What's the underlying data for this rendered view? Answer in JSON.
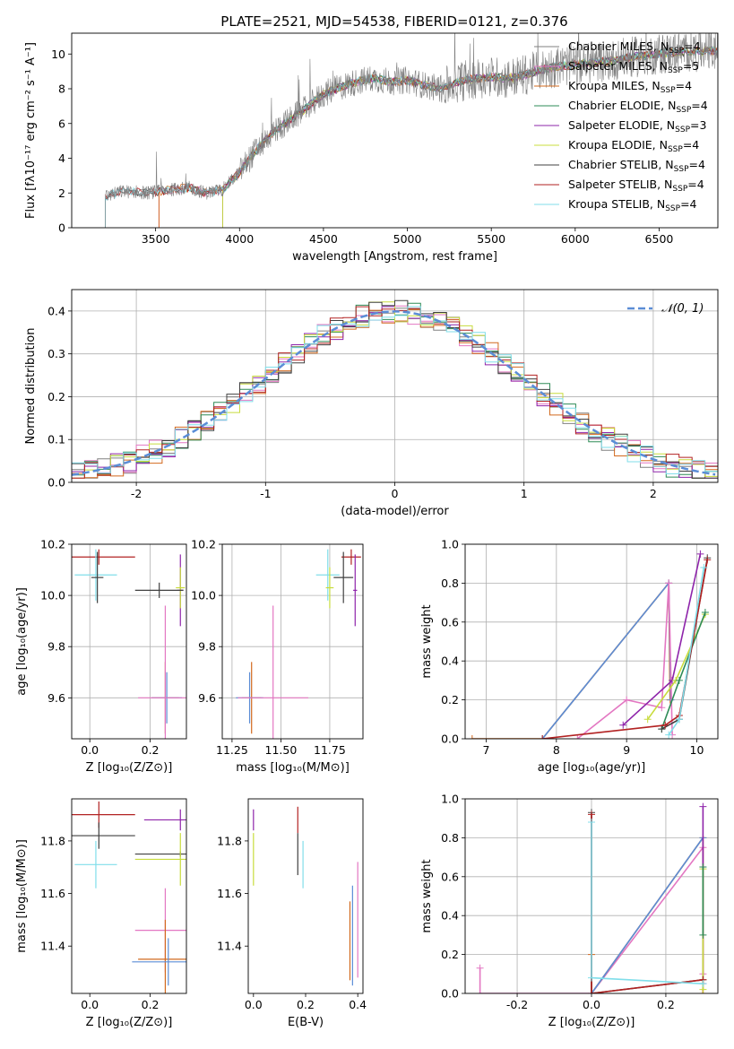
{
  "chart_data": [
    {
      "type": "line",
      "title": "PLATE=2521, MJD=54538, FIBERID=0121, z=0.376",
      "xlabel": "wavelength [Angstrom, rest frame]",
      "ylabel": "Flux [fλ10⁻¹⁷ erg cm⁻² s⁻¹ A⁻¹]",
      "xlim": [
        3000,
        6850
      ],
      "ylim": [
        0,
        11.2
      ],
      "xticks": [
        3500,
        4000,
        4500,
        5000,
        5500,
        6000,
        6500
      ],
      "yticks": [
        0,
        2,
        4,
        6,
        8,
        10
      ],
      "legend_position": "top-right",
      "data_color": "#808080",
      "approx_continuum": {
        "x": [
          3200,
          3300,
          3450,
          3600,
          3700,
          3800,
          3900,
          4000,
          4100,
          4200,
          4300,
          4400,
          4500,
          4600,
          4700,
          4800,
          4900,
          5000,
          5100,
          5200,
          5300,
          5400,
          5500,
          5600,
          5700,
          5800,
          5900,
          6000,
          6200,
          6400,
          6600,
          6800
        ],
        "y": [
          1.8,
          2.1,
          2.0,
          2.2,
          2.3,
          2.0,
          2.2,
          3.2,
          4.5,
          5.5,
          6.2,
          6.9,
          7.7,
          8.1,
          8.4,
          8.6,
          8.4,
          8.5,
          8.2,
          8.0,
          8.4,
          8.6,
          8.7,
          8.6,
          8.8,
          9.1,
          9.3,
          9.4,
          9.6,
          9.9,
          10.1,
          10.2
        ]
      },
      "series": [
        {
          "name": "Chabrier MILES, Nₛₛₚ=4",
          "label_main": "Chabrier MILES, N",
          "label_sub": "SSP",
          "label_end": "=4",
          "color": "#808080",
          "start": 3200
        },
        {
          "name": "Salpeter MILES, Nₛₛₚ=5",
          "label_main": "Salpeter MILES, N",
          "label_sub": "SSP",
          "label_end": "=5",
          "color": "#e377c2",
          "start": 3520
        },
        {
          "name": "Kroupa MILES, Nₛₛₚ=4",
          "label_main": "Kroupa MILES, N",
          "label_sub": "SSP",
          "label_end": "=4",
          "color": "#d2691e",
          "start": 3520
        },
        {
          "name": "Chabrier ELODIE, Nₛₛₚ=4",
          "label_main": "Chabrier ELODIE, N",
          "label_sub": "SSP",
          "label_end": "=4",
          "color": "#2e8b57",
          "start": 3900
        },
        {
          "name": "Salpeter ELODIE, Nₛₛₚ=3",
          "label_main": "Salpeter ELODIE, N",
          "label_sub": "SSP",
          "label_end": "=3",
          "color": "#8e24aa",
          "start": 3900
        },
        {
          "name": "Kroupa ELODIE, Nₛₛₚ=4",
          "label_main": "Kroupa ELODIE, N",
          "label_sub": "SSP",
          "label_end": "=4",
          "color": "#c8dc3c",
          "start": 3900
        },
        {
          "name": "Chabrier STELIB, Nₛₛₚ=4",
          "label_main": "Chabrier STELIB, N",
          "label_sub": "SSP",
          "label_end": "=4",
          "color": "#404040",
          "start": 3200
        },
        {
          "name": "Salpeter STELIB, Nₛₛₚ=4",
          "label_main": "Salpeter STELIB, N",
          "label_sub": "SSP",
          "label_end": "=4",
          "color": "#b22222",
          "start": 3200
        },
        {
          "name": "Kroupa STELIB, Nₛₛₚ=4",
          "label_main": "Kroupa STELIB, N",
          "label_sub": "SSP",
          "label_end": "=4",
          "color": "#80deea",
          "start": 3200
        }
      ]
    },
    {
      "type": "line",
      "xlabel": "(data-model)/error",
      "ylabel": "Normed distribution",
      "xlim": [
        -2.5,
        2.5
      ],
      "ylim": [
        0,
        0.45
      ],
      "xticks": [
        -2,
        -1,
        0,
        1,
        2
      ],
      "yticks": [
        0.0,
        0.1,
        0.2,
        0.3,
        0.4
      ],
      "grid": true,
      "legend_position": "top-right",
      "normal_curve": {
        "label": "𝒩(0, 1)",
        "color": "#5b8dd6",
        "style": "dashed"
      },
      "histogram_note": "step histograms of residuals, one per model, bin width 0.1, scattered around N(0,1)"
    },
    {
      "type": "scatter",
      "xlabel": "Z [log₁₀(Z/Z⊙)]",
      "ylabel": "age  [log₁₀(age/yr)]",
      "xlim": [
        -0.06,
        0.32
      ],
      "ylim": [
        9.44,
        10.2
      ],
      "xticks": [
        0.0,
        0.2
      ],
      "yticks": [
        9.6,
        9.8,
        10.0,
        10.2
      ],
      "grid": true,
      "points": [
        {
          "c": "#b22222",
          "x": 0.03,
          "xerr": 0.12,
          "y": 10.15,
          "yerr": 0.03
        },
        {
          "c": "#80deea",
          "x": 0.02,
          "xerr": 0.07,
          "y": 10.08,
          "yerr": 0.1
        },
        {
          "c": "#404040",
          "x": 0.025,
          "xerr": 0.02,
          "y": 10.07,
          "yerr": 0.1
        },
        {
          "c": "#8e24aa",
          "x": 0.3,
          "xerr": 0.01,
          "y": 10.02,
          "yerr": 0.14
        },
        {
          "c": "#c8dc3c",
          "x": 0.3,
          "xerr": 0.015,
          "y": 10.03,
          "yerr": 0.08
        },
        {
          "c": "#404040",
          "x": 0.23,
          "xerr": 0.08,
          "y": 10.02,
          "yerr": 0.03
        },
        {
          "c": "#d2691e",
          "x": 0.25,
          "xerr": 0.045,
          "y": 9.6,
          "yerr": 0.14
        },
        {
          "c": "#5b8dd6",
          "x": 0.255,
          "xerr": 0.05,
          "y": 9.6,
          "yerr": 0.1
        },
        {
          "c": "#e377c2",
          "x": 0.25,
          "xerr": 0.09,
          "y": 9.6,
          "yerr": 0.36
        }
      ]
    },
    {
      "type": "scatter",
      "xlabel": "mass [log₁₀(M/M⊙)]",
      "ylabel": "",
      "xlim": [
        11.2,
        11.92
      ],
      "ylim": [
        9.44,
        10.2
      ],
      "xticks": [
        11.25,
        11.5,
        11.75
      ],
      "yticks": [
        9.6,
        9.8,
        10.0,
        10.2
      ],
      "grid": true,
      "points": [
        {
          "c": "#b22222",
          "x": 11.86,
          "xerr": 0.05,
          "y": 10.15,
          "yerr": 0.03
        },
        {
          "c": "#80deea",
          "x": 11.74,
          "xerr": 0.06,
          "y": 10.08,
          "yerr": 0.1
        },
        {
          "c": "#404040",
          "x": 11.82,
          "xerr": 0.05,
          "y": 10.07,
          "yerr": 0.1
        },
        {
          "c": "#8e24aa",
          "x": 11.88,
          "xerr": 0.01,
          "y": 10.02,
          "yerr": 0.14
        },
        {
          "c": "#c8dc3c",
          "x": 11.75,
          "xerr": 0.02,
          "y": 10.03,
          "yerr": 0.08
        },
        {
          "c": "#d2691e",
          "x": 11.35,
          "xerr": 0.05,
          "y": 9.6,
          "yerr": 0.14
        },
        {
          "c": "#5b8dd6",
          "x": 11.34,
          "xerr": 0.07,
          "y": 9.6,
          "yerr": 0.1
        },
        {
          "c": "#e377c2",
          "x": 11.46,
          "xerr": 0.18,
          "y": 9.6,
          "yerr": 0.36
        }
      ]
    },
    {
      "type": "line",
      "xlabel": "age  [log₁₀(age/yr)]",
      "ylabel": "mass weight",
      "xlim": [
        6.7,
        10.3
      ],
      "ylim": [
        0,
        1.0
      ],
      "xticks": [
        7,
        8,
        9,
        10
      ],
      "yticks": [
        0.0,
        0.2,
        0.4,
        0.6,
        0.8,
        1.0
      ],
      "grid": true,
      "series": [
        {
          "c": "#d2691e",
          "x": [
            6.8,
            7.8,
            9.6,
            9.62
          ],
          "y": [
            0,
            0,
            0.8,
            0.2
          ]
        },
        {
          "c": "#5b8dd6",
          "x": [
            7.8,
            9.6,
            9.63
          ],
          "y": [
            0,
            0.8,
            0.2
          ]
        },
        {
          "c": "#e377c2",
          "x": [
            8.3,
            9.0,
            9.5,
            9.6,
            9.65
          ],
          "y": [
            0,
            0.2,
            0.16,
            0.8,
            0.02
          ]
        },
        {
          "c": "#8e24aa",
          "x": [
            8.95,
            9.65,
            10.05
          ],
          "y": [
            0.07,
            0.3,
            0.95
          ]
        },
        {
          "c": "#c8dc3c",
          "x": [
            9.3,
            9.7,
            10.12
          ],
          "y": [
            0.1,
            0.3,
            0.64
          ]
        },
        {
          "c": "#2e8b57",
          "x": [
            9.5,
            9.75,
            10.12
          ],
          "y": [
            0.05,
            0.3,
            0.65
          ]
        },
        {
          "c": "#404040",
          "x": [
            9.5,
            9.75,
            10.15
          ],
          "y": [
            0.05,
            0.1,
            0.93
          ]
        },
        {
          "c": "#b22222",
          "x": [
            7.8,
            9.55,
            9.75,
            10.15
          ],
          "y": [
            0,
            0.07,
            0.12,
            0.92
          ]
        },
        {
          "c": "#80deea",
          "x": [
            9.6,
            9.75,
            10.1
          ],
          "y": [
            0.02,
            0.1,
            0.88
          ]
        }
      ]
    },
    {
      "type": "scatter",
      "xlabel": "Z [log₁₀(Z/Z⊙)]",
      "ylabel": "mass [log₁₀(M/M⊙)]",
      "xlim": [
        -0.06,
        0.32
      ],
      "ylim": [
        11.22,
        11.96
      ],
      "xticks": [
        0.0,
        0.2
      ],
      "yticks": [
        11.4,
        11.6,
        11.8
      ],
      "grid": false,
      "points": [
        {
          "c": "#b22222",
          "x": 0.03,
          "xerr": 0.12,
          "y": 11.9,
          "yerr": 0.05
        },
        {
          "c": "#8e24aa",
          "x": 0.3,
          "xerr": 0.12,
          "y": 11.88,
          "yerr": 0.04
        },
        {
          "c": "#404040",
          "x": 0.03,
          "xerr": 0.12,
          "y": 11.82,
          "yerr": 0.05
        },
        {
          "c": "#404040",
          "x": 0.3,
          "xerr": 0.15,
          "y": 11.75,
          "yerr": 0.01
        },
        {
          "c": "#c8dc3c",
          "x": 0.3,
          "xerr": 0.15,
          "y": 11.73,
          "yerr": 0.1
        },
        {
          "c": "#80deea",
          "x": 0.02,
          "xerr": 0.07,
          "y": 11.71,
          "yerr": 0.09
        },
        {
          "c": "#e377c2",
          "x": 0.25,
          "xerr": 0.1,
          "y": 11.46,
          "yerr": 0.16
        },
        {
          "c": "#d2691e",
          "x": 0.25,
          "xerr": 0.09,
          "y": 11.35,
          "yerr": 0.15
        },
        {
          "c": "#5b8dd6",
          "x": 0.26,
          "xerr": 0.12,
          "y": 11.34,
          "yerr": 0.09
        }
      ]
    },
    {
      "type": "scatter",
      "xlabel": "E(B-V)",
      "ylabel": "",
      "xlim": [
        -0.02,
        0.42
      ],
      "ylim": [
        11.22,
        11.96
      ],
      "xticks": [
        0.0,
        0.2,
        0.4
      ],
      "yticks": [
        11.4,
        11.6,
        11.8
      ],
      "grid": false,
      "points": [
        {
          "c": "#8e24aa",
          "x": 0.0,
          "y": 11.88,
          "yerr": 0.04
        },
        {
          "c": "#c8dc3c",
          "x": 0.0,
          "y": 11.73,
          "yerr": 0.1
        },
        {
          "c": "#b22222",
          "x": 0.17,
          "y": 11.88,
          "yerr": 0.05
        },
        {
          "c": "#404040",
          "x": 0.17,
          "y": 11.75,
          "yerr": 0.08
        },
        {
          "c": "#80deea",
          "x": 0.19,
          "y": 11.71,
          "yerr": 0.09
        },
        {
          "c": "#d2691e",
          "x": 0.37,
          "y": 11.42,
          "yerr": 0.15
        },
        {
          "c": "#5b8dd6",
          "x": 0.38,
          "y": 11.44,
          "yerr": 0.19
        },
        {
          "c": "#e377c2",
          "x": 0.4,
          "y": 11.5,
          "yerr": 0.22
        }
      ]
    },
    {
      "type": "line",
      "xlabel": "Z [log₁₀(Z/Z⊙)]",
      "ylabel": "mass weight",
      "xlim": [
        -0.34,
        0.34
      ],
      "ylim": [
        0,
        1.0
      ],
      "xticks": [
        -0.2,
        0.0,
        0.2
      ],
      "yticks": [
        0.0,
        0.2,
        0.4,
        0.6,
        0.8,
        1.0
      ],
      "grid": true,
      "series": [
        {
          "c": "#e377c2",
          "x": [
            -0.3,
            -0.3,
            0.0,
            0.3,
            0.3
          ],
          "y": [
            0.13,
            0.0,
            0.0,
            0.75,
            0.1
          ]
        },
        {
          "c": "#d2691e",
          "x": [
            0.0,
            0.0,
            0.3,
            0.3
          ],
          "y": [
            0.2,
            0.0,
            0.8,
            0.0
          ]
        },
        {
          "c": "#5b8dd6",
          "x": [
            0.0,
            0.3
          ],
          "y": [
            0.0,
            0.8
          ]
        },
        {
          "c": "#8e24aa",
          "x": [
            0.3,
            0.3
          ],
          "y": [
            0.96,
            0.05
          ]
        },
        {
          "c": "#c8dc3c",
          "x": [
            0.3,
            0.3
          ],
          "y": [
            0.64,
            0.02
          ]
        },
        {
          "c": "#2e8b57",
          "x": [
            0.3,
            0.3
          ],
          "y": [
            0.65,
            0.3
          ]
        },
        {
          "c": "#404040",
          "x": [
            0.0,
            0.0,
            0.3
          ],
          "y": [
            0.93,
            0.0,
            0.07
          ]
        },
        {
          "c": "#b22222",
          "x": [
            0.0,
            0.0,
            0.3
          ],
          "y": [
            0.92,
            0.0,
            0.07
          ]
        },
        {
          "c": "#80deea",
          "x": [
            0.0,
            0.0,
            0.3
          ],
          "y": [
            0.88,
            0.08,
            0.05
          ]
        }
      ]
    }
  ]
}
